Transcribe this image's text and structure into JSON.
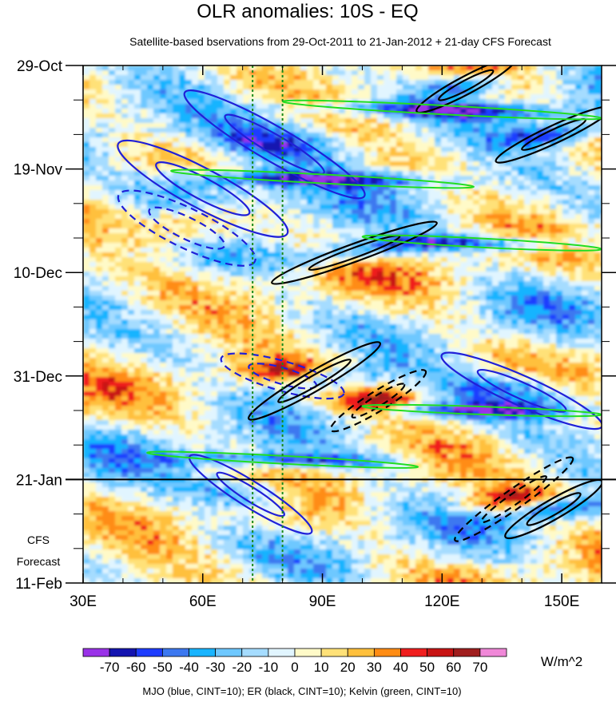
{
  "chart_data": {
    "type": "heatmap",
    "title": "OLR anomalies: 10S - EQ",
    "subtitle": "Satellite-based bservations from 29-Oct-2011 to 21-Jan-2012 + 21-day CFS Forecast",
    "x_ticks": [
      {
        "value": 30,
        "label": "30E"
      },
      {
        "value": 60,
        "label": "60E"
      },
      {
        "value": 90,
        "label": "90E"
      },
      {
        "value": 120,
        "label": "120E"
      },
      {
        "value": 150,
        "label": "150E"
      }
    ],
    "xlim": [
      30,
      160
    ],
    "y_ticks": [
      {
        "day": 0,
        "label": "29-Oct"
      },
      {
        "day": 21,
        "label": "19-Nov"
      },
      {
        "day": 42,
        "label": "10-Dec"
      },
      {
        "day": 63,
        "label": "31-Dec"
      },
      {
        "day": 84,
        "label": "21-Jan"
      },
      {
        "day": 105,
        "label": "11-Feb"
      }
    ],
    "ylim_days": [
      0,
      105
    ],
    "forecast_start_day": 84,
    "forecast_label": [
      "CFS",
      "Forecast"
    ],
    "reference_lines_lon": [
      72.5,
      80
    ],
    "colorbar": {
      "levels": [
        "-70",
        "-60",
        "-50",
        "-40",
        "-30",
        "-20",
        "-10",
        "0",
        "10",
        "20",
        "30",
        "40",
        "50",
        "60",
        "70"
      ],
      "colors": [
        "#9a32e8",
        "#1414b0",
        "#1e3cff",
        "#3c78f0",
        "#19b4ff",
        "#6ec8ff",
        "#a5dcff",
        "#e1f5ff",
        "#fffac8",
        "#ffe178",
        "#ffc03c",
        "#ff8c14",
        "#f01e1e",
        "#c81414",
        "#a01e1e",
        "#f088d8"
      ],
      "units": "W/m^2"
    },
    "contour_legend": "MJO (blue, CINT=10); ER (black, CINT=10); Kelvin (green, CINT=10)",
    "series": [
      {
        "name": "MJO",
        "color": "#2020d8",
        "cint": 10,
        "features": [
          {
            "lon": 78,
            "day": 16,
            "rx": 26,
            "ry": 3.5,
            "angle": 30,
            "sign": "neg"
          },
          {
            "lon": 60,
            "day": 25,
            "rx": 24,
            "ry": 4,
            "angle": 28,
            "sign": "neg"
          },
          {
            "lon": 56,
            "day": 33,
            "rx": 19,
            "ry": 4,
            "angle": 26,
            "sign": "pos"
          },
          {
            "lon": 80,
            "day": 63,
            "rx": 16,
            "ry": 3,
            "angle": 16,
            "sign": "pos"
          },
          {
            "lon": 72,
            "day": 87,
            "rx": 18,
            "ry": 2.6,
            "angle": 32,
            "sign": "neg"
          },
          {
            "lon": 140,
            "day": 66,
            "rx": 22,
            "ry": 3,
            "angle": 24,
            "sign": "neg"
          }
        ]
      },
      {
        "name": "ER",
        "color": "#000000",
        "cint": 10,
        "features": [
          {
            "lon": 126,
            "day": 4,
            "rx": 14,
            "ry": 1.8,
            "angle": -28,
            "sign": "neg"
          },
          {
            "lon": 148,
            "day": 14,
            "rx": 16,
            "ry": 1.8,
            "angle": -25,
            "sign": "neg"
          },
          {
            "lon": 98,
            "day": 38,
            "rx": 22,
            "ry": 1.8,
            "angle": -20,
            "sign": "neg"
          },
          {
            "lon": 88,
            "day": 64,
            "rx": 19,
            "ry": 2,
            "angle": -30,
            "sign": "neg"
          },
          {
            "lon": 104,
            "day": 68,
            "rx": 14,
            "ry": 2,
            "angle": -32,
            "sign": "pos"
          },
          {
            "lon": 138,
            "day": 88,
            "rx": 18,
            "ry": 2,
            "angle": -35,
            "sign": "pos"
          },
          {
            "lon": 148,
            "day": 90,
            "rx": 14,
            "ry": 2,
            "angle": -30,
            "sign": "neg"
          }
        ]
      },
      {
        "name": "Kelvin",
        "color": "#22dd22",
        "cint": 10,
        "features": [
          {
            "lon": 120,
            "day": 9,
            "rx": 40,
            "ry": 0.9,
            "angle": 3,
            "sign": "neg"
          },
          {
            "lon": 90,
            "day": 23,
            "rx": 38,
            "ry": 0.9,
            "angle": 3,
            "sign": "neg"
          },
          {
            "lon": 130,
            "day": 36,
            "rx": 30,
            "ry": 0.9,
            "angle": 3,
            "sign": "neg"
          },
          {
            "lon": 130,
            "day": 70,
            "rx": 30,
            "ry": 0.8,
            "angle": 2,
            "sign": "neg"
          },
          {
            "lon": 80,
            "day": 80,
            "rx": 34,
            "ry": 0.8,
            "angle": 3,
            "sign": "neg"
          }
        ]
      }
    ]
  }
}
